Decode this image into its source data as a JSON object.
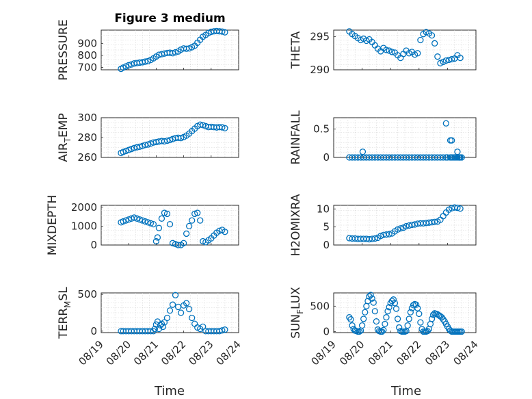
{
  "figure": {
    "title": "Figure 3 medium",
    "xlabel": "Time",
    "marker_color": "#0072bd"
  },
  "chart_data": [
    {
      "type": "scatter",
      "id": "pressure",
      "title": "Figure 3 medium",
      "ylabel": "PRESSURE",
      "ylabel_sub": "",
      "xlim": [
        0,
        5
      ],
      "ylim": [
        680,
        1010
      ],
      "yticks": [
        700,
        800,
        900
      ],
      "ytick_labels": [
        "700",
        "800",
        "900"
      ],
      "xticks": [
        0,
        1,
        2,
        3,
        4,
        5
      ],
      "xtick_labels": [
        "08/19",
        "08/20",
        "08/21",
        "08/22",
        "08/23",
        "08/24"
      ],
      "show_xticklabels": false,
      "grid": true,
      "minor_grid": true,
      "x": [
        0.72,
        0.8,
        0.9,
        1.0,
        1.1,
        1.2,
        1.3,
        1.4,
        1.5,
        1.6,
        1.7,
        1.8,
        1.9,
        2.0,
        2.1,
        2.2,
        2.3,
        2.4,
        2.5,
        2.6,
        2.7,
        2.8,
        2.9,
        3.0,
        3.1,
        3.2,
        3.3,
        3.4,
        3.5,
        3.6,
        3.7,
        3.8,
        3.9,
        4.0,
        4.1,
        4.2,
        4.3,
        4.4,
        4.5
      ],
      "y": [
        688,
        698,
        708,
        718,
        725,
        733,
        736,
        740,
        743,
        748,
        752,
        762,
        775,
        790,
        805,
        810,
        815,
        820,
        822,
        818,
        825,
        832,
        848,
        858,
        855,
        858,
        868,
        880,
        905,
        930,
        955,
        970,
        985,
        996,
        1000,
        1002,
        1000,
        998,
        992
      ]
    },
    {
      "type": "scatter",
      "id": "theta",
      "title": "",
      "ylabel": "THETA",
      "ylabel_sub": "",
      "xlim": [
        0,
        5
      ],
      "ylim": [
        290,
        296
      ],
      "yticks": [
        290,
        295
      ],
      "ytick_labels": [
        "290",
        "295"
      ],
      "xticks": [
        0,
        1,
        2,
        3,
        4,
        5
      ],
      "xtick_labels": [
        "08/19",
        "08/20",
        "08/21",
        "08/22",
        "08/23",
        "08/24"
      ],
      "show_xticklabels": false,
      "grid": true,
      "minor_grid": true,
      "x": [
        0.55,
        0.65,
        0.75,
        0.85,
        0.95,
        1.05,
        1.15,
        1.25,
        1.35,
        1.45,
        1.55,
        1.65,
        1.75,
        1.85,
        1.95,
        2.05,
        2.15,
        2.25,
        2.35,
        2.45,
        2.55,
        2.65,
        2.75,
        2.85,
        2.95,
        3.05,
        3.15,
        3.25,
        3.35,
        3.45,
        3.55,
        3.65,
        3.75,
        3.85,
        3.95,
        4.05,
        4.15,
        4.25,
        4.35,
        4.45
      ],
      "y": [
        295.8,
        295.4,
        295.1,
        294.8,
        294.5,
        294.7,
        294.4,
        294.6,
        294.2,
        293.7,
        293.2,
        292.8,
        293.3,
        293.0,
        292.9,
        292.7,
        292.6,
        292.2,
        291.8,
        292.4,
        292.9,
        292.5,
        292.7,
        292.3,
        292.5,
        294.5,
        295.4,
        295.7,
        295.5,
        295.2,
        294.0,
        292.0,
        291.0,
        291.2,
        291.4,
        291.5,
        291.6,
        291.7,
        292.2,
        291.8
      ]
    },
    {
      "type": "scatter",
      "id": "air_temp",
      "title": "",
      "ylabel": "AIR",
      "ylabel_sub": "T",
      "ylabel_tail": "EMP",
      "xlim": [
        0,
        5
      ],
      "ylim": [
        260,
        300
      ],
      "yticks": [
        260,
        280,
        300
      ],
      "ytick_labels": [
        "260",
        "280",
        "300"
      ],
      "xticks": [
        0,
        1,
        2,
        3,
        4,
        5
      ],
      "xtick_labels": [
        "08/19",
        "08/20",
        "08/21",
        "08/22",
        "08/23",
        "08/24"
      ],
      "show_xticklabels": false,
      "grid": true,
      "minor_grid": true,
      "x": [
        0.72,
        0.8,
        0.9,
        1.0,
        1.1,
        1.2,
        1.3,
        1.4,
        1.5,
        1.6,
        1.7,
        1.8,
        1.9,
        2.0,
        2.1,
        2.2,
        2.3,
        2.4,
        2.5,
        2.6,
        2.7,
        2.8,
        2.9,
        3.0,
        3.1,
        3.2,
        3.3,
        3.4,
        3.5,
        3.6,
        3.7,
        3.8,
        3.9,
        4.0,
        4.1,
        4.2,
        4.3,
        4.4,
        4.5
      ],
      "y": [
        264.5,
        265.5,
        266.5,
        267.5,
        268.5,
        269.5,
        270.2,
        270.8,
        271.5,
        272.5,
        273.0,
        274.0,
        275.0,
        275.5,
        276.0,
        276.5,
        276.2,
        276.8,
        277.5,
        278.5,
        279.5,
        279.8,
        279.5,
        280.5,
        282.0,
        284.0,
        286.5,
        289.0,
        291.5,
        293.0,
        292.5,
        291.5,
        290.5,
        290.8,
        290.5,
        290.2,
        290.5,
        290.3,
        289.5
      ]
    },
    {
      "type": "scatter",
      "id": "rainfall",
      "title": "",
      "ylabel": "RAINFALL",
      "ylabel_sub": "",
      "xlim": [
        0,
        5
      ],
      "ylim": [
        0,
        0.7
      ],
      "yticks": [
        0,
        0.5
      ],
      "ytick_labels": [
        "0",
        "0.5"
      ],
      "xticks": [
        0,
        1,
        2,
        3,
        4,
        5
      ],
      "xtick_labels": [
        "08/19",
        "08/20",
        "08/21",
        "08/22",
        "08/23",
        "08/24"
      ],
      "show_xticklabels": false,
      "grid": true,
      "minor_grid": true,
      "x": [
        0.55,
        0.65,
        0.75,
        0.85,
        0.95,
        1.05,
        1.15,
        1.25,
        1.35,
        1.45,
        1.55,
        1.65,
        1.75,
        1.85,
        1.95,
        2.05,
        2.15,
        2.25,
        2.35,
        2.45,
        2.55,
        2.65,
        2.75,
        2.85,
        2.95,
        3.05,
        3.15,
        3.25,
        3.35,
        3.45,
        3.55,
        3.65,
        3.75,
        3.85,
        3.95,
        4.0,
        4.1,
        4.15,
        4.2,
        4.25,
        4.3,
        4.35,
        4.4,
        4.45,
        4.5,
        1.02,
        3.95,
        4.1,
        4.15,
        4.35,
        4.42
      ],
      "y": [
        0,
        0,
        0,
        0,
        0,
        0,
        0,
        0,
        0,
        0,
        0,
        0,
        0,
        0,
        0,
        0,
        0,
        0,
        0,
        0,
        0,
        0,
        0,
        0,
        0,
        0,
        0,
        0,
        0,
        0,
        0,
        0,
        0,
        0,
        0,
        0,
        0,
        0,
        0,
        0,
        0,
        0,
        0,
        0,
        0,
        0.1,
        0.6,
        0.3,
        0.3,
        0.1,
        0
      ]
    },
    {
      "type": "scatter",
      "id": "mixdepth",
      "title": "",
      "ylabel": "MIXDEPTH",
      "ylabel_sub": "",
      "xlim": [
        0,
        5
      ],
      "ylim": [
        0,
        2100
      ],
      "yticks": [
        0,
        1000,
        2000
      ],
      "ytick_labels": [
        "0",
        "1000",
        "2000"
      ],
      "xticks": [
        0,
        1,
        2,
        3,
        4,
        5
      ],
      "xtick_labels": [
        "08/19",
        "08/20",
        "08/21",
        "08/22",
        "08/23",
        "08/24"
      ],
      "show_xticklabels": false,
      "grid": true,
      "minor_grid": true,
      "x": [
        0.72,
        0.8,
        0.9,
        1.0,
        1.1,
        1.2,
        1.3,
        1.4,
        1.5,
        1.6,
        1.7,
        1.8,
        1.9,
        2.0,
        2.05,
        2.1,
        2.2,
        2.3,
        2.4,
        2.5,
        2.6,
        2.7,
        2.8,
        2.9,
        3.0,
        3.1,
        3.2,
        3.3,
        3.4,
        3.5,
        3.6,
        3.7,
        3.8,
        3.9,
        4.0,
        4.1,
        4.2,
        4.3,
        4.4,
        4.5
      ],
      "y": [
        1200,
        1250,
        1300,
        1350,
        1400,
        1450,
        1400,
        1350,
        1300,
        1250,
        1200,
        1150,
        1100,
        200,
        400,
        900,
        1400,
        1700,
        1650,
        1100,
        100,
        50,
        0,
        0,
        100,
        600,
        1000,
        1300,
        1650,
        1700,
        1300,
        200,
        150,
        250,
        350,
        500,
        650,
        750,
        800,
        700
      ]
    },
    {
      "type": "scatter",
      "id": "h2omixra",
      "title": "",
      "ylabel": "H2OMIXRA",
      "ylabel_sub": "",
      "xlim": [
        0,
        5
      ],
      "ylim": [
        0,
        11
      ],
      "yticks": [
        0,
        5,
        10
      ],
      "ytick_labels": [
        "0",
        "5",
        "10"
      ],
      "xticks": [
        0,
        1,
        2,
        3,
        4,
        5
      ],
      "xtick_labels": [
        "08/19",
        "08/20",
        "08/21",
        "08/22",
        "08/23",
        "08/24"
      ],
      "show_xticklabels": false,
      "grid": true,
      "minor_grid": true,
      "x": [
        0.55,
        0.65,
        0.75,
        0.85,
        0.95,
        1.05,
        1.15,
        1.25,
        1.35,
        1.45,
        1.55,
        1.65,
        1.75,
        1.85,
        1.95,
        2.05,
        2.15,
        2.25,
        2.35,
        2.45,
        2.55,
        2.65,
        2.75,
        2.85,
        2.95,
        3.05,
        3.15,
        3.25,
        3.35,
        3.45,
        3.55,
        3.65,
        3.75,
        3.85,
        3.95,
        4.05,
        4.15,
        4.25,
        4.35,
        4.45
      ],
      "y": [
        1.9,
        1.8,
        1.8,
        1.7,
        1.7,
        1.7,
        1.7,
        1.6,
        1.7,
        1.8,
        2.0,
        2.5,
        2.8,
        2.9,
        3.0,
        3.2,
        3.8,
        4.3,
        4.6,
        4.8,
        5.2,
        5.4,
        5.6,
        5.7,
        5.9,
        6.0,
        6.0,
        6.1,
        6.2,
        6.3,
        6.4,
        6.5,
        7.0,
        8.0,
        9.0,
        9.8,
        10.2,
        10.4,
        10.3,
        10.1
      ]
    },
    {
      "type": "scatter",
      "id": "terr_msl",
      "title": "",
      "ylabel": "TERR",
      "ylabel_sub": "M",
      "ylabel_tail": "SL",
      "xlim": [
        0,
        5
      ],
      "ylim": [
        -20,
        520
      ],
      "yticks": [
        0,
        500
      ],
      "ytick_labels": [
        "0",
        "500"
      ],
      "xticks": [
        0,
        1,
        2,
        3,
        4,
        5
      ],
      "xtick_labels": [
        "08/19",
        "08/20",
        "08/21",
        "08/22",
        "08/23",
        "08/24"
      ],
      "show_xticklabels": true,
      "grid": true,
      "minor_grid": true,
      "x": [
        0.72,
        0.8,
        0.9,
        1.0,
        1.1,
        1.2,
        1.3,
        1.4,
        1.5,
        1.6,
        1.7,
        1.8,
        1.9,
        1.95,
        2.0,
        2.05,
        2.1,
        2.15,
        2.2,
        2.25,
        2.3,
        2.4,
        2.5,
        2.6,
        2.7,
        2.8,
        2.9,
        3.0,
        3.1,
        3.2,
        3.3,
        3.4,
        3.5,
        3.6,
        3.7,
        3.8,
        3.9,
        4.0,
        4.1,
        4.2,
        4.3,
        4.4,
        4.5
      ],
      "y": [
        0,
        0,
        0,
        0,
        0,
        0,
        0,
        0,
        0,
        0,
        0,
        0,
        0,
        30,
        90,
        130,
        30,
        80,
        100,
        60,
        120,
        180,
        280,
        360,
        490,
        330,
        250,
        350,
        380,
        300,
        180,
        100,
        50,
        30,
        60,
        0,
        0,
        0,
        0,
        0,
        0,
        10,
        20
      ]
    },
    {
      "type": "scatter",
      "id": "sun_flux",
      "title": "",
      "ylabel": "SUN",
      "ylabel_sub": "F",
      "ylabel_tail": "LUX",
      "xlim": [
        0,
        5
      ],
      "ylim": [
        -20,
        760
      ],
      "yticks": [
        0,
        500
      ],
      "ytick_labels": [
        "0",
        "500"
      ],
      "xticks": [
        0,
        1,
        2,
        3,
        4,
        5
      ],
      "xtick_labels": [
        "08/19",
        "08/20",
        "08/21",
        "08/22",
        "08/23",
        "08/24"
      ],
      "show_xticklabels": true,
      "grid": true,
      "minor_grid": true,
      "x": [
        0.55,
        0.6,
        0.65,
        0.7,
        0.75,
        0.8,
        0.85,
        0.9,
        0.95,
        1.0,
        1.05,
        1.1,
        1.15,
        1.2,
        1.25,
        1.3,
        1.35,
        1.4,
        1.45,
        1.5,
        1.55,
        1.6,
        1.65,
        1.7,
        1.75,
        1.8,
        1.85,
        1.9,
        1.95,
        2.0,
        2.05,
        2.1,
        2.15,
        2.2,
        2.25,
        2.3,
        2.35,
        2.4,
        2.45,
        2.5,
        2.55,
        2.6,
        2.65,
        2.7,
        2.75,
        2.8,
        2.85,
        2.9,
        2.95,
        3.0,
        3.05,
        3.1,
        3.15,
        3.2,
        3.25,
        3.3,
        3.35,
        3.4,
        3.45,
        3.5,
        3.55,
        3.6,
        3.65,
        3.7,
        3.75,
        3.8,
        3.85,
        3.9,
        3.95,
        4.0,
        4.05,
        4.1,
        4.15,
        4.2,
        4.25,
        4.3,
        4.35,
        4.4,
        4.45,
        4.5
      ],
      "y": [
        280,
        240,
        120,
        50,
        20,
        10,
        0,
        0,
        20,
        120,
        250,
        380,
        500,
        600,
        690,
        720,
        650,
        570,
        400,
        200,
        40,
        10,
        0,
        0,
        30,
        150,
        280,
        400,
        480,
        560,
        600,
        630,
        560,
        450,
        250,
        80,
        10,
        0,
        0,
        0,
        10,
        120,
        250,
        380,
        460,
        520,
        540,
        530,
        460,
        350,
        180,
        50,
        0,
        0,
        0,
        10,
        50,
        150,
        250,
        330,
        360,
        350,
        340,
        320,
        300,
        280,
        240,
        200,
        150,
        100,
        50,
        20,
        0,
        0,
        0,
        0,
        0,
        0,
        0,
        0
      ]
    }
  ]
}
